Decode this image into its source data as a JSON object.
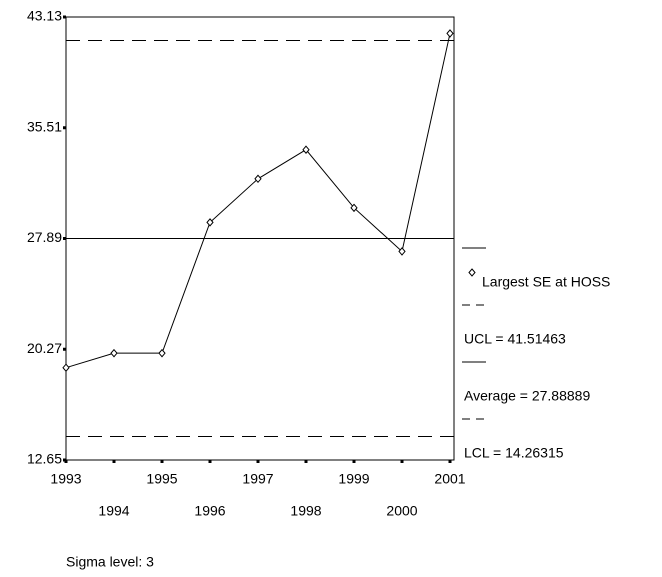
{
  "chart_data": {
    "type": "control",
    "categories": [
      "1993",
      "1994",
      "1995",
      "1996",
      "1997",
      "1998",
      "1999",
      "2000",
      "2001"
    ],
    "series": [
      {
        "name": "Largest SE at HOSS",
        "color": "#000000",
        "values": [
          19,
          20,
          20,
          29,
          32,
          34,
          30,
          27,
          42
        ]
      }
    ],
    "limits": [
      {
        "name": "UCL = 41.51463",
        "value": 41.51463,
        "style": "dashed"
      },
      {
        "name": "Average = 27.88889",
        "value": 27.88889,
        "style": "solid"
      },
      {
        "name": "LCL = 14.26315",
        "value": 14.26315,
        "style": "dashed"
      }
    ],
    "ylim": [
      12.65,
      43.13
    ],
    "yticks": [
      12.65,
      20.27,
      27.89,
      35.51,
      43.13
    ],
    "note": "Sigma level: 3"
  }
}
